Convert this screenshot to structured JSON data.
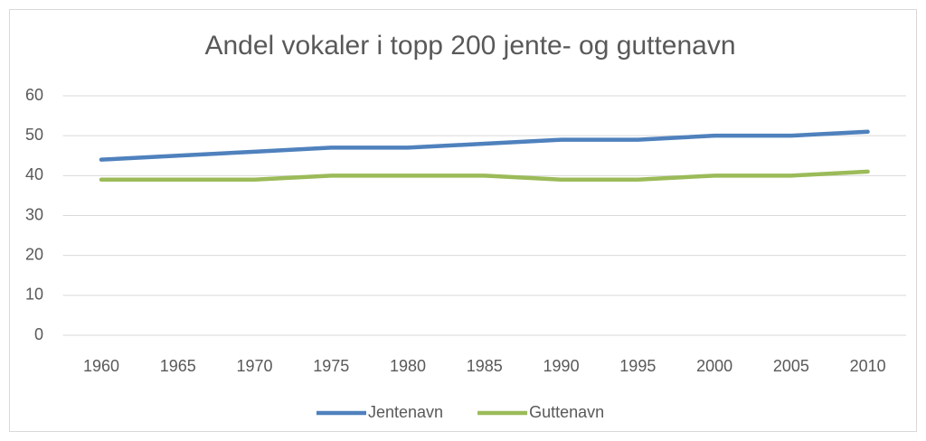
{
  "chart_data": {
    "type": "line",
    "title": "Andel vokaler i topp 200 jente- og guttenavn",
    "categories": [
      "1960",
      "1965",
      "1970",
      "1975",
      "1980",
      "1985",
      "1990",
      "1995",
      "2000",
      "2005",
      "2010"
    ],
    "series": [
      {
        "name": "Jentenavn",
        "color": "#4f81bd",
        "values": [
          44,
          45,
          46,
          47,
          47,
          48,
          49,
          49,
          50,
          50,
          51
        ]
      },
      {
        "name": "Guttenavn",
        "color": "#9bbb59",
        "values": [
          39,
          39,
          39,
          40,
          40,
          40,
          39,
          39,
          40,
          40,
          41
        ]
      }
    ],
    "ylim": [
      0,
      60
    ],
    "yticks": [
      0,
      10,
      20,
      30,
      40,
      50,
      60
    ],
    "grid": true,
    "legend": "bottom"
  }
}
